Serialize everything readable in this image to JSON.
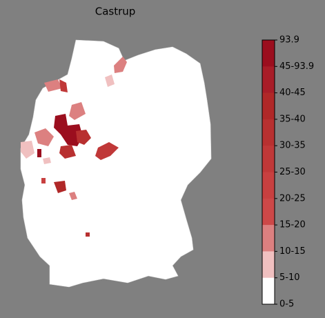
{
  "title": "Castrup",
  "colorbar": {
    "labels": [
      "93.9",
      "45-93.9",
      "40-45",
      "35-40",
      "30-35",
      "25-30",
      "20-25",
      "15-20",
      "10-15",
      "5-10",
      "0-5"
    ],
    "colors": [
      "#9b0e1e",
      "#a81d28",
      "#b02828",
      "#b83030",
      "#c03838",
      "#c84040",
      "#cd4848",
      "#dc8080",
      "#f0c0c0",
      "#ffffff"
    ]
  }
}
